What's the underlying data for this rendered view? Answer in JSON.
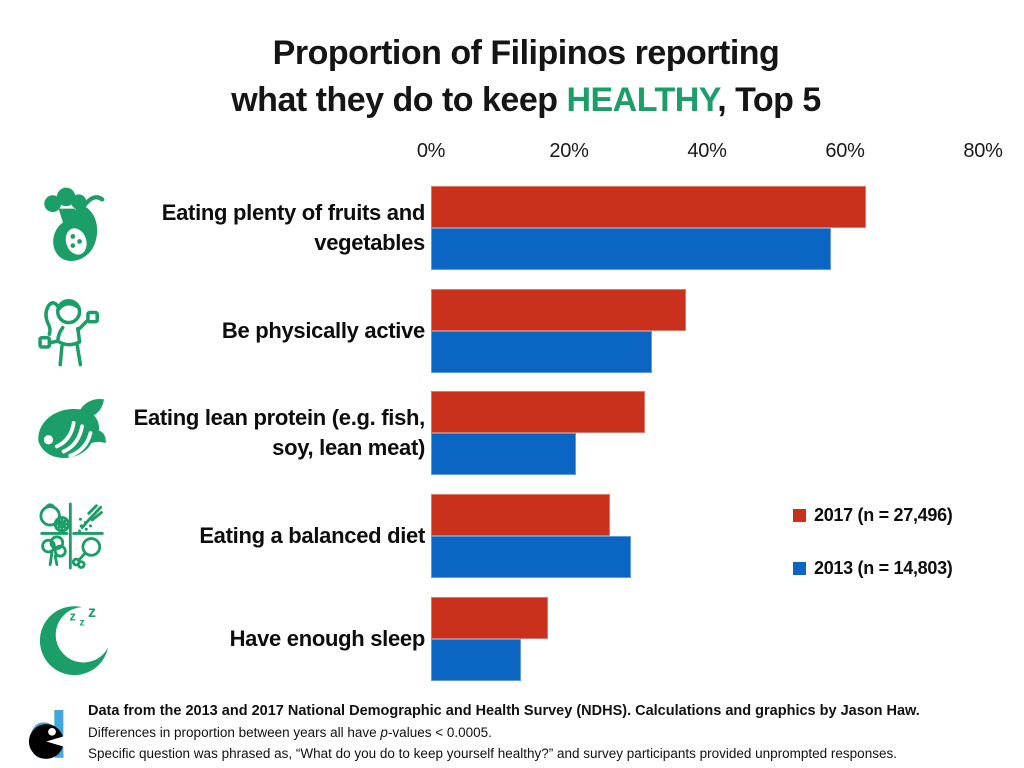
{
  "title": {
    "line1": "Proportion of Filipinos reporting",
    "line2_prefix": "what they do to keep ",
    "line2_highlight": "HEALTHY",
    "line2_suffix": ", Top 5",
    "highlight_color": "#1b9e68"
  },
  "chart_data": {
    "type": "bar",
    "orientation": "horizontal",
    "x_axis": {
      "position": "top",
      "min": 0,
      "max": 80,
      "ticks": [
        "0%",
        "20%",
        "40%",
        "60%",
        "80%"
      ],
      "unit": "percent"
    },
    "grid": false,
    "categories": [
      "Eating plenty of fruits and vegetables",
      "Be physically active",
      "Eating lean protein (e.g. fish, soy, lean meat)",
      "Eating a balanced diet",
      "Have enough sleep"
    ],
    "category_icons": [
      "fruits-vegetables-icon",
      "exercise-icon",
      "fish-icon",
      "balanced-diet-icon",
      "sleep-icon"
    ],
    "series": [
      {
        "name": "2017 (n = 27,496)",
        "color": "#c9311d",
        "values": [
          63,
          37,
          31,
          26,
          17
        ]
      },
      {
        "name": "2013 (n = 14,803)",
        "color": "#0b66c3",
        "values": [
          58,
          32,
          21,
          29,
          13
        ]
      }
    ],
    "legend_position": "right"
  },
  "footer": {
    "line1": "Data from the 2013 and 2017 National Demographic and Health Survey (NDHS). Calculations and graphics by Jason Haw.",
    "line2_parts": [
      "Differences in proportion between years all have ",
      "p",
      "-values < 0.0005."
    ],
    "line3": "Specific question was phrased as, “What do you do to keep yourself healthy?” and survey participants provided unprompted responses.",
    "logo_name": "dc-logo"
  },
  "colors": {
    "red_2017": "#c9311d",
    "blue_2013": "#0b66c3",
    "green_accent": "#1b9e68",
    "logo_blue": "#41a8dc"
  }
}
